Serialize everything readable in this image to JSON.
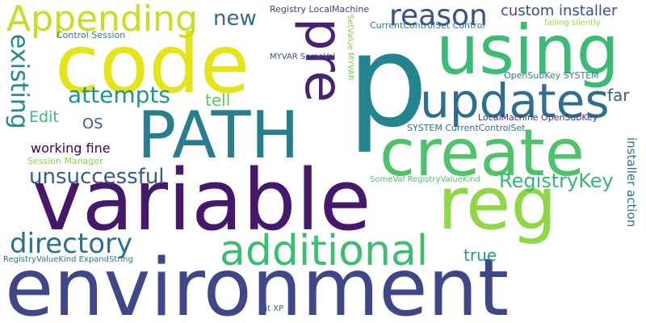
{
  "words": [
    {
      "id": "environment",
      "text": "environment",
      "color": "#3f4788"
    },
    {
      "id": "variable",
      "text": "variable",
      "color": "#46186b"
    },
    {
      "id": "p",
      "text": "p",
      "color": "#24858e"
    },
    {
      "id": "code",
      "text": "code",
      "color": "#e4e419"
    },
    {
      "id": "PATH",
      "text": "PATH",
      "color": "#287d8e"
    },
    {
      "id": "create",
      "text": "create",
      "color": "#4ec36b"
    },
    {
      "id": "using",
      "text": "using",
      "color": "#3bbb75"
    },
    {
      "id": "reg",
      "text": "reg",
      "color": "#8fd744"
    },
    {
      "id": "pre",
      "text": "pre",
      "color": "#482173"
    },
    {
      "id": "additional",
      "text": "additional",
      "color": "#3dbc74"
    },
    {
      "id": "updates",
      "text": "updates",
      "color": "#2d708e"
    },
    {
      "id": "Appending",
      "text": "Appending",
      "color": "#c5e021"
    },
    {
      "id": "reason",
      "text": "reason",
      "color": "#3b4f8a"
    },
    {
      "id": "directory",
      "text": "directory",
      "color": "#2d6f8e"
    },
    {
      "id": "existing",
      "text": "existing",
      "color": "#23898e"
    },
    {
      "id": "unsuccessful",
      "text": "unsuccessful",
      "color": "#365c8d"
    },
    {
      "id": "attempts",
      "text": "attempts",
      "color": "#1f958b"
    },
    {
      "id": "new",
      "text": "new",
      "color": "#2f6c8e"
    },
    {
      "id": "RegistryKey",
      "text": "RegistryKey",
      "color": "#35b779"
    },
    {
      "id": "custom-installer",
      "text": "custom installer",
      "color": "#3e4989"
    },
    {
      "id": "tell",
      "text": "tell",
      "color": "#5ec962"
    },
    {
      "id": "far",
      "text": "far",
      "color": "#355f8d"
    },
    {
      "id": "true",
      "text": "true",
      "color": "#1e9b8a"
    },
    {
      "id": "Edit",
      "text": "Edit",
      "color": "#38b977"
    },
    {
      "id": "OS",
      "text": "OS",
      "color": "#355e8d"
    },
    {
      "id": "working-fine",
      "text": "working fine",
      "color": "#440154"
    },
    {
      "id": "installer-action",
      "text": "installer action",
      "color": "#2c728e"
    },
    {
      "id": "Session-Manager",
      "text": "Session Manager",
      "color": "#86d549"
    },
    {
      "id": "Control-Session",
      "text": "Control Session",
      "color": "#277f8e"
    },
    {
      "id": "Registry-LocalMachine",
      "text": "Registry LocalMachine",
      "color": "#414487"
    },
    {
      "id": "MYVAR-SomeVal",
      "text": "MYVAR SomeVal",
      "color": "#3e4a89"
    },
    {
      "id": "SetValue-MYVAR",
      "text": "SetValue MYVAR",
      "color": "#7ad151"
    },
    {
      "id": "CurrentControlSet-Control",
      "text": "CurrentControlSet Control",
      "color": "#2a788e"
    },
    {
      "id": "failing-silently",
      "text": "failing silently",
      "color": "#a0da39"
    },
    {
      "id": "OpenSubKey-SYSTEM",
      "text": "OpenSubKey SYSTEM",
      "color": "#26828e"
    },
    {
      "id": "LocalMachine-OpenSubKey",
      "text": "LocalMachine OpenSubKey",
      "color": "#46337e"
    },
    {
      "id": "SYSTEM-CurrentControlSet",
      "text": "SYSTEM CurrentControlSet",
      "color": "#2d718e"
    },
    {
      "id": "SomeVal-RegistryValueKind",
      "text": "SomeVal RegistryValueKind",
      "color": "#4ac16d"
    },
    {
      "id": "RegistryValueKind-ExpandString",
      "text": "RegistryValueKind ExpandString",
      "color": "#2a778e"
    },
    {
      "id": "bit-XP",
      "text": "bit XP",
      "color": "#39568c"
    }
  ]
}
